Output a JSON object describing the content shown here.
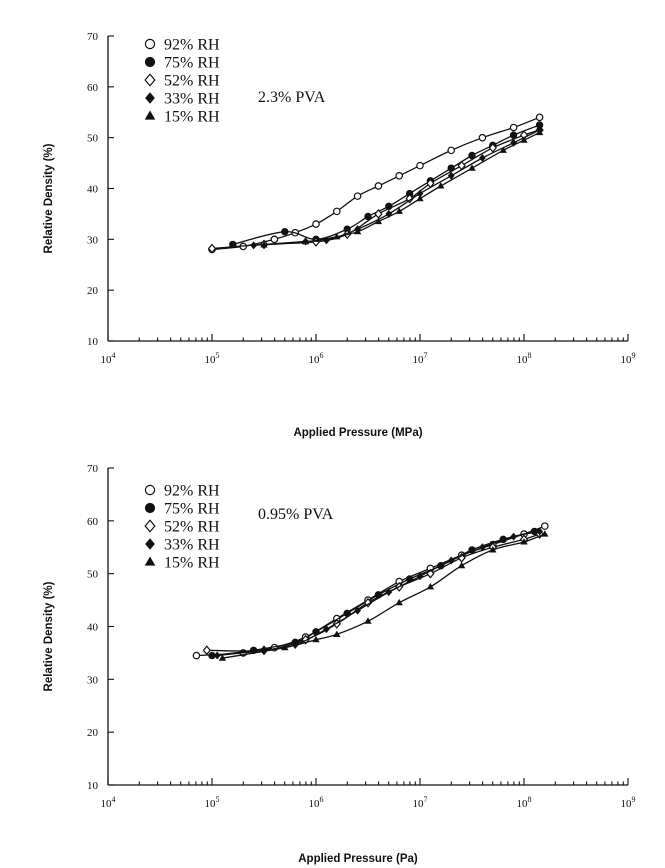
{
  "chart_data": [
    {
      "type": "scatter",
      "xlabel": "Applied Pressure (MPa)",
      "ylabel": "Relative Density (%)",
      "xscale": "log",
      "xlim_exp": [
        4,
        9
      ],
      "ylim": [
        10,
        70
      ],
      "x_tick_labels": [
        "10⁴",
        "10⁵",
        "10⁶",
        "10⁷",
        "10⁸",
        "10⁹"
      ],
      "y_ticks": [
        10,
        20,
        30,
        40,
        50,
        60,
        70
      ],
      "annotation": "2.3% PVA",
      "legend_position": "top-left",
      "series": [
        {
          "name": "92% RH",
          "marker": "circle-open",
          "log10_x": [
            5.0,
            5.3,
            5.6,
            5.8,
            6.0,
            6.2,
            6.4,
            6.6,
            6.8,
            7.0,
            7.3,
            7.6,
            7.9,
            8.15
          ],
          "y": [
            28.0,
            28.6,
            30.0,
            31.3,
            33.0,
            35.5,
            38.5,
            40.5,
            42.5,
            44.5,
            47.5,
            50.0,
            52.0,
            54.0
          ]
        },
        {
          "name": "75% RH",
          "marker": "circle-filled",
          "log10_x": [
            5.2,
            5.7,
            6.0,
            6.3,
            6.5,
            6.7,
            6.9,
            7.1,
            7.3,
            7.5,
            7.7,
            7.9,
            8.15
          ],
          "y": [
            29.0,
            31.5,
            30.0,
            32.0,
            34.5,
            36.5,
            39.0,
            41.5,
            44.0,
            46.5,
            48.5,
            50.5,
            52.5
          ]
        },
        {
          "name": "52% RH",
          "marker": "diamond-open",
          "log10_x": [
            5.0,
            5.5,
            6.0,
            6.3,
            6.6,
            6.9,
            7.1,
            7.4,
            7.7,
            8.0,
            8.15
          ],
          "y": [
            28.2,
            29.0,
            29.5,
            31.0,
            35.0,
            38.0,
            41.0,
            44.5,
            48.0,
            50.5,
            51.5
          ]
        },
        {
          "name": "33% RH",
          "marker": "diamond-filled",
          "log10_x": [
            5.4,
            5.9,
            6.1,
            6.4,
            6.7,
            7.0,
            7.3,
            7.6,
            7.9,
            8.15
          ],
          "y": [
            28.8,
            29.6,
            29.8,
            32.0,
            35.0,
            39.0,
            42.5,
            46.0,
            49.0,
            51.5
          ]
        },
        {
          "name": "15% RH",
          "marker": "triangle-filled",
          "log10_x": [
            5.5,
            5.9,
            6.2,
            6.4,
            6.6,
            6.8,
            7.0,
            7.2,
            7.5,
            7.8,
            8.0,
            8.15
          ],
          "y": [
            28.9,
            29.5,
            30.5,
            31.5,
            33.5,
            35.5,
            38.0,
            40.5,
            44.0,
            47.5,
            49.5,
            51.0
          ]
        }
      ]
    },
    {
      "type": "scatter",
      "xlabel": "Applied Pressure (Pa)",
      "ylabel": "Relative Density (%)",
      "xscale": "log",
      "xlim_exp": [
        4,
        9
      ],
      "ylim": [
        10,
        70
      ],
      "x_tick_labels": [
        "10⁴",
        "10⁵",
        "10⁶",
        "10⁷",
        "10⁸",
        "10⁹"
      ],
      "y_ticks": [
        10,
        20,
        30,
        40,
        50,
        60,
        70
      ],
      "annotation": "0.95% PVA",
      "legend_position": "top-left",
      "series": [
        {
          "name": "92% RH",
          "marker": "circle-open",
          "log10_x": [
            4.85,
            5.3,
            5.6,
            5.9,
            6.2,
            6.5,
            6.8,
            7.1,
            7.4,
            7.7,
            8.0,
            8.2
          ],
          "y": [
            34.5,
            35.0,
            36.0,
            38.0,
            41.5,
            45.0,
            48.5,
            51.0,
            53.5,
            55.5,
            57.5,
            59.0
          ]
        },
        {
          "name": "75% RH",
          "marker": "circle-filled",
          "log10_x": [
            5.0,
            5.4,
            5.8,
            6.0,
            6.3,
            6.6,
            6.9,
            7.2,
            7.5,
            7.8,
            8.1
          ],
          "y": [
            34.5,
            35.5,
            37.0,
            39.0,
            42.5,
            46.0,
            49.0,
            51.5,
            54.5,
            56.5,
            58.0
          ]
        },
        {
          "name": "52% RH",
          "marker": "diamond-open",
          "log10_x": [
            4.95,
            5.5,
            5.9,
            6.2,
            6.5,
            6.8,
            7.1,
            7.4,
            7.7,
            8.0,
            8.15
          ],
          "y": [
            35.5,
            35.5,
            37.5,
            40.5,
            44.5,
            47.5,
            50.0,
            53.0,
            55.0,
            56.5,
            57.5
          ]
        },
        {
          "name": "33% RH",
          "marker": "diamond-filled",
          "log10_x": [
            5.05,
            5.5,
            5.8,
            6.1,
            6.4,
            6.7,
            7.0,
            7.3,
            7.6,
            7.9,
            8.15
          ],
          "y": [
            34.5,
            35.5,
            36.5,
            39.5,
            43.0,
            46.5,
            49.5,
            52.5,
            55.0,
            57.0,
            58.0
          ]
        },
        {
          "name": "15% RH",
          "marker": "triangle-filled",
          "log10_x": [
            5.1,
            5.7,
            6.0,
            6.2,
            6.5,
            6.8,
            7.1,
            7.4,
            7.7,
            8.0,
            8.2
          ],
          "y": [
            34.0,
            36.0,
            37.5,
            38.5,
            41.0,
            44.5,
            47.5,
            51.5,
            54.5,
            56.0,
            57.5
          ]
        }
      ]
    }
  ]
}
